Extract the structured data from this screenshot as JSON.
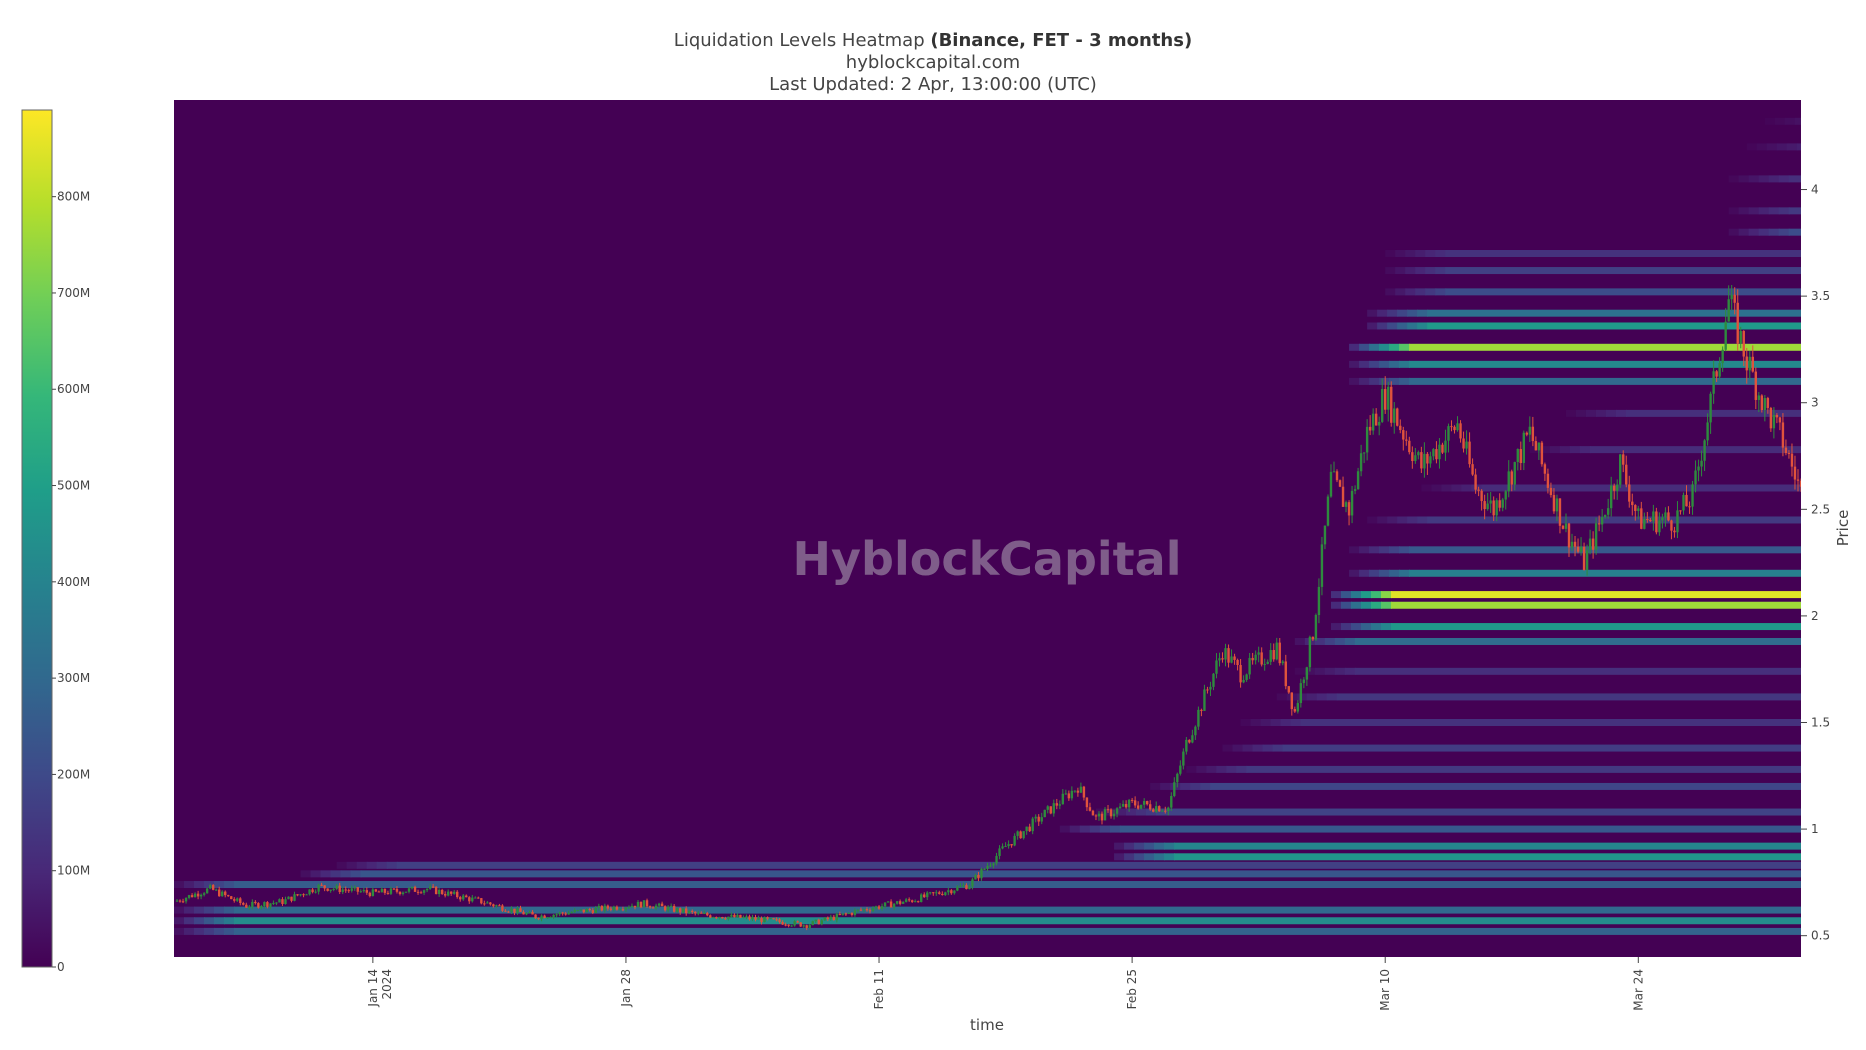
{
  "header": {
    "title_prefix": "Liquidation Levels Heatmap ",
    "title_bold": "(Binance, FET - 3 months)",
    "subtitle": "hyblockcapital.com",
    "updated": "Last Updated: 2 Apr, 13:00:00 (UTC)"
  },
  "watermark": "HyblockCapital",
  "colors": {
    "background": "#440154",
    "candle_up": "#2e8b3e",
    "candle_down": "#e0533c",
    "viridis": [
      "#440154",
      "#482878",
      "#3e4989",
      "#31688e",
      "#26828e",
      "#1f9e89",
      "#35b779",
      "#6ece58",
      "#b5de2b",
      "#fde725"
    ]
  },
  "chart_data": {
    "type": "heatmap",
    "x_label": "time",
    "y_label": "Price",
    "x_range": [
      "2024-01-03",
      "2024-04-02"
    ],
    "y_range": [
      0.4,
      4.42
    ],
    "x_ticks": [
      {
        "date": "2024-01-14",
        "label": "Jan 14",
        "label2": "2024"
      },
      {
        "date": "2024-01-28",
        "label": "Jan 28"
      },
      {
        "date": "2024-02-11",
        "label": "Feb 11"
      },
      {
        "date": "2024-02-25",
        "label": "Feb 25"
      },
      {
        "date": "2024-03-10",
        "label": "Mar 10"
      },
      {
        "date": "2024-03-24",
        "label": "Mar 24"
      }
    ],
    "y_ticks": [
      0.5,
      1,
      1.5,
      2,
      2.5,
      3,
      3.5,
      4
    ],
    "colorbar": {
      "min": 0,
      "max": 890000000,
      "ticks": [
        {
          "value": 0,
          "label": "0"
        },
        {
          "value": 100000000,
          "label": "100M"
        },
        {
          "value": 200000000,
          "label": "200M"
        },
        {
          "value": 300000000,
          "label": "300M"
        },
        {
          "value": 400000000,
          "label": "400M"
        },
        {
          "value": 500000000,
          "label": "500M"
        },
        {
          "value": 600000000,
          "label": "600M"
        },
        {
          "value": 700000000,
          "label": "700M"
        },
        {
          "value": 800000000,
          "label": "800M"
        }
      ]
    },
    "price_series": [
      [
        "2024-01-03",
        0.66
      ],
      [
        "2024-01-05",
        0.72
      ],
      [
        "2024-01-07",
        0.64
      ],
      [
        "2024-01-09",
        0.66
      ],
      [
        "2024-01-11",
        0.73
      ],
      [
        "2024-01-14",
        0.7
      ],
      [
        "2024-01-17",
        0.72
      ],
      [
        "2024-01-20",
        0.66
      ],
      [
        "2024-01-23",
        0.59
      ],
      [
        "2024-01-26",
        0.62
      ],
      [
        "2024-01-29",
        0.65
      ],
      [
        "2024-02-01",
        0.6
      ],
      [
        "2024-02-04",
        0.58
      ],
      [
        "2024-02-07",
        0.55
      ],
      [
        "2024-02-10",
        0.62
      ],
      [
        "2024-02-13",
        0.67
      ],
      [
        "2024-02-16",
        0.74
      ],
      [
        "2024-02-18",
        0.92
      ],
      [
        "2024-02-20",
        1.06
      ],
      [
        "2024-02-22",
        1.2
      ],
      [
        "2024-02-23",
        1.05
      ],
      [
        "2024-02-25",
        1.12
      ],
      [
        "2024-02-27",
        1.1
      ],
      [
        "2024-02-28",
        1.4
      ],
      [
        "2024-02-29",
        1.62
      ],
      [
        "2024-03-01",
        1.84
      ],
      [
        "2024-03-02",
        1.73
      ],
      [
        "2024-03-04",
        1.85
      ],
      [
        "2024-03-05",
        1.55
      ],
      [
        "2024-03-06",
        1.92
      ],
      [
        "2024-03-07",
        2.64
      ],
      [
        "2024-03-08",
        2.5
      ],
      [
        "2024-03-09",
        2.86
      ],
      [
        "2024-03-10",
        3.04
      ],
      [
        "2024-03-11",
        2.86
      ],
      [
        "2024-03-12",
        2.7
      ],
      [
        "2024-03-14",
        2.9
      ],
      [
        "2024-03-15",
        2.6
      ],
      [
        "2024-03-16",
        2.5
      ],
      [
        "2024-03-18",
        2.86
      ],
      [
        "2024-03-20",
        2.4
      ],
      [
        "2024-03-21",
        2.25
      ],
      [
        "2024-03-22",
        2.46
      ],
      [
        "2024-03-23",
        2.72
      ],
      [
        "2024-03-24",
        2.45
      ],
      [
        "2024-03-26",
        2.45
      ],
      [
        "2024-03-27",
        2.56
      ],
      [
        "2024-03-28",
        3.0
      ],
      [
        "2024-03-29",
        3.48
      ],
      [
        "2024-03-30",
        3.2
      ],
      [
        "2024-03-31",
        2.98
      ],
      [
        "2024-04-01",
        2.82
      ],
      [
        "2024-04-02",
        2.58
      ]
    ],
    "levels": [
      {
        "price": 0.52,
        "from": "2024-01-03",
        "value": 280000000
      },
      {
        "price": 0.57,
        "from": "2024-01-03",
        "value": 430000000
      },
      {
        "price": 0.62,
        "from": "2024-01-03",
        "value": 300000000
      },
      {
        "price": 0.74,
        "from": "2024-01-03",
        "value": 260000000
      },
      {
        "price": 0.79,
        "from": "2024-01-10",
        "value": 240000000
      },
      {
        "price": 0.83,
        "from": "2024-01-12",
        "value": 170000000
      },
      {
        "price": 0.87,
        "from": "2024-02-24",
        "value": 470000000
      },
      {
        "price": 0.92,
        "from": "2024-02-24",
        "value": 410000000
      },
      {
        "price": 1.0,
        "from": "2024-02-21",
        "value": 250000000
      },
      {
        "price": 1.08,
        "from": "2024-02-23",
        "value": 180000000
      },
      {
        "price": 1.2,
        "from": "2024-02-26",
        "value": 190000000
      },
      {
        "price": 1.28,
        "from": "2024-02-28",
        "value": 150000000
      },
      {
        "price": 1.38,
        "from": "2024-03-01",
        "value": 160000000
      },
      {
        "price": 1.5,
        "from": "2024-03-02",
        "value": 130000000
      },
      {
        "price": 1.62,
        "from": "2024-03-04",
        "value": 140000000
      },
      {
        "price": 1.74,
        "from": "2024-03-05",
        "value": 120000000
      },
      {
        "price": 1.88,
        "from": "2024-03-05",
        "value": 310000000
      },
      {
        "price": 1.95,
        "from": "2024-03-07",
        "value": 480000000
      },
      {
        "price": 2.05,
        "from": "2024-03-07",
        "value": 760000000
      },
      {
        "price": 2.1,
        "from": "2024-03-07",
        "value": 850000000
      },
      {
        "price": 2.2,
        "from": "2024-03-08",
        "value": 390000000
      },
      {
        "price": 2.31,
        "from": "2024-03-08",
        "value": 250000000
      },
      {
        "price": 2.45,
        "from": "2024-03-09",
        "value": 150000000
      },
      {
        "price": 2.6,
        "from": "2024-03-12",
        "value": 110000000
      },
      {
        "price": 2.78,
        "from": "2024-03-18",
        "value": 110000000
      },
      {
        "price": 2.95,
        "from": "2024-03-20",
        "value": 120000000
      },
      {
        "price": 3.1,
        "from": "2024-03-08",
        "value": 300000000
      },
      {
        "price": 3.18,
        "from": "2024-03-08",
        "value": 420000000
      },
      {
        "price": 3.26,
        "from": "2024-03-08",
        "value": 760000000
      },
      {
        "price": 3.36,
        "from": "2024-03-09",
        "value": 480000000
      },
      {
        "price": 3.42,
        "from": "2024-03-09",
        "value": 330000000
      },
      {
        "price": 3.52,
        "from": "2024-03-10",
        "value": 210000000
      },
      {
        "price": 3.62,
        "from": "2024-03-10",
        "value": 170000000
      },
      {
        "price": 3.7,
        "from": "2024-03-10",
        "value": 130000000
      },
      {
        "price": 3.8,
        "from": "2024-03-29",
        "value": 210000000
      },
      {
        "price": 3.9,
        "from": "2024-03-29",
        "value": 150000000
      },
      {
        "price": 4.05,
        "from": "2024-03-29",
        "value": 120000000
      },
      {
        "price": 4.2,
        "from": "2024-03-30",
        "value": 90000000
      },
      {
        "price": 4.32,
        "from": "2024-03-31",
        "value": 70000000
      }
    ]
  }
}
